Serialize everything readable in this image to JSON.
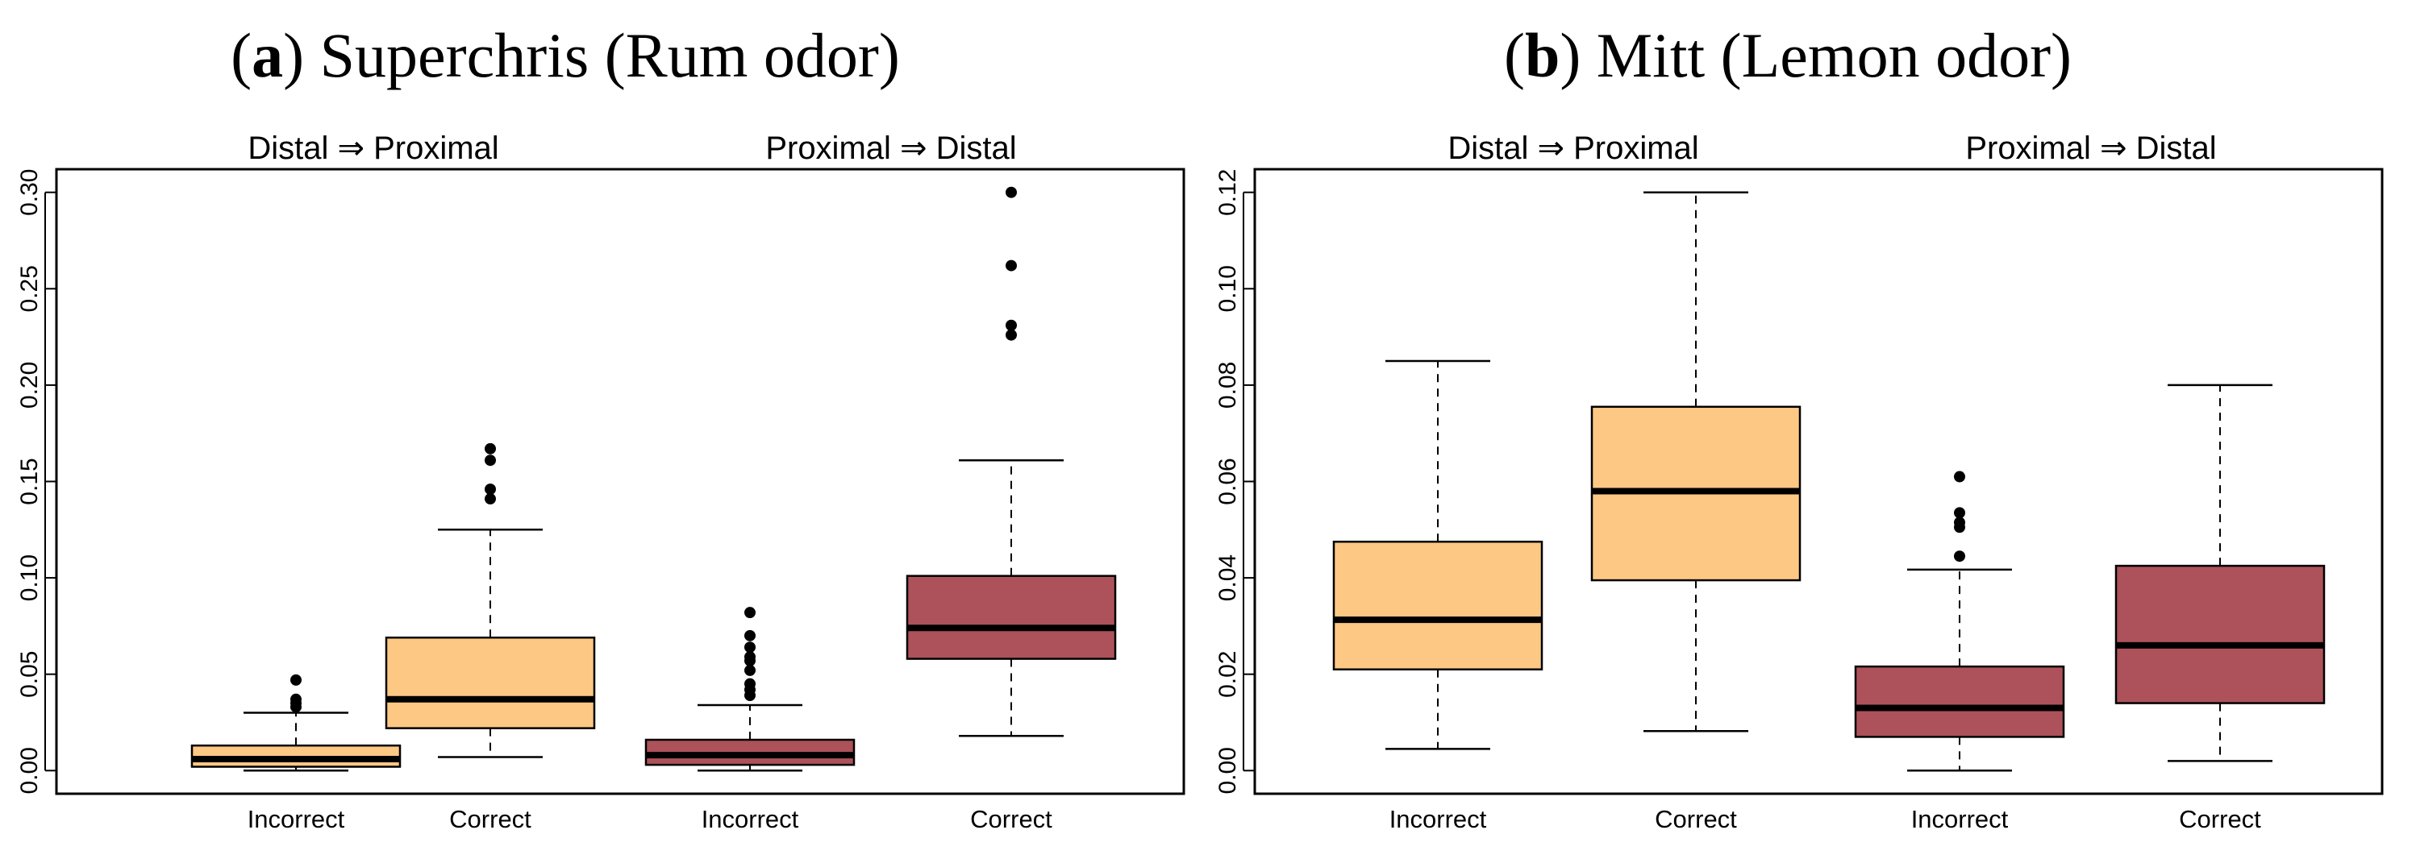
{
  "chart_data": [
    {
      "type": "box",
      "title_prefix": "(",
      "title_letter": "a",
      "title_rest": ") Superchris (Rum odor)",
      "group_labels": [
        "Distal ⇒ Proximal",
        "Proximal ⇒ Distal"
      ],
      "categories": [
        "Incorrect",
        "Correct",
        "Incorrect",
        "Correct"
      ],
      "ylim": [
        -0.012,
        0.312
      ],
      "yticks": [
        "0.00",
        "0.05",
        "0.10",
        "0.15",
        "0.20",
        "0.25",
        "0.30"
      ],
      "ytick_values": [
        0,
        0.05,
        0.1,
        0.15,
        0.2,
        0.25,
        0.3
      ],
      "boxes": [
        {
          "group": "Distal ⇒ Proximal",
          "category": "Incorrect",
          "whisker_low": 0.0,
          "q1": 0.002,
          "median": 0.006,
          "q3": 0.013,
          "whisker_high": 0.03,
          "outliers": [
            0.033,
            0.035,
            0.037,
            0.047
          ],
          "color": "#FDC884"
        },
        {
          "group": "Distal ⇒ Proximal",
          "category": "Correct",
          "whisker_low": 0.007,
          "q1": 0.022,
          "median": 0.037,
          "q3": 0.069,
          "whisker_high": 0.125,
          "outliers": [
            0.141,
            0.146,
            0.161,
            0.167
          ],
          "color": "#FDC884"
        },
        {
          "group": "Proximal ⇒ Distal",
          "category": "Incorrect",
          "whisker_low": 0.0,
          "q1": 0.003,
          "median": 0.008,
          "q3": 0.016,
          "whisker_high": 0.034,
          "outliers": [
            0.039,
            0.042,
            0.045,
            0.052,
            0.057,
            0.059,
            0.064,
            0.07,
            0.082
          ],
          "color": "#AD525A"
        },
        {
          "group": "Proximal ⇒ Distal",
          "category": "Correct",
          "whisker_low": 0.018,
          "q1": 0.058,
          "median": 0.074,
          "q3": 0.101,
          "whisker_high": 0.161,
          "outliers": [
            0.226,
            0.231,
            0.262,
            0.3
          ],
          "color": "#AD525A"
        }
      ]
    },
    {
      "type": "box",
      "title_prefix": "(",
      "title_letter": "b",
      "title_rest": ") Mitt (Lemon odor)",
      "group_labels": [
        "Distal ⇒ Proximal",
        "Proximal ⇒ Distal"
      ],
      "categories": [
        "Incorrect",
        "Correct",
        "Incorrect",
        "Correct"
      ],
      "ylim": [
        -0.0048,
        0.1248
      ],
      "yticks": [
        "0.00",
        "0.02",
        "0.04",
        "0.06",
        "0.08",
        "0.10",
        "0.12"
      ],
      "ytick_values": [
        0,
        0.02,
        0.04,
        0.06,
        0.08,
        0.1,
        0.12
      ],
      "boxes": [
        {
          "group": "Distal ⇒ Proximal",
          "category": "Incorrect",
          "whisker_low": 0.0045,
          "q1": 0.021,
          "median": 0.0313,
          "q3": 0.0475,
          "whisker_high": 0.085,
          "outliers": [],
          "color": "#FDC884"
        },
        {
          "group": "Distal ⇒ Proximal",
          "category": "Correct",
          "whisker_low": 0.0082,
          "q1": 0.0395,
          "median": 0.058,
          "q3": 0.0755,
          "whisker_high": 0.12,
          "outliers": [],
          "color": "#FDC884"
        },
        {
          "group": "Proximal ⇒ Distal",
          "category": "Incorrect",
          "whisker_low": 0.0,
          "q1": 0.007,
          "median": 0.013,
          "q3": 0.0216,
          "whisker_high": 0.0417,
          "outliers": [
            0.0445,
            0.0505,
            0.0515,
            0.0535,
            0.061
          ],
          "color": "#AD525A"
        },
        {
          "group": "Proximal ⇒ Distal",
          "category": "Correct",
          "whisker_low": 0.002,
          "q1": 0.014,
          "median": 0.026,
          "q3": 0.0425,
          "whisker_high": 0.08,
          "outliers": [],
          "color": "#AD525A"
        }
      ]
    }
  ]
}
